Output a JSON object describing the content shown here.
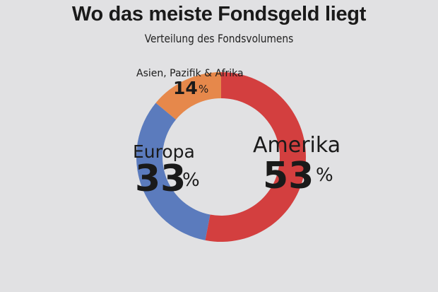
{
  "header": {
    "title": "Wo das meiste Fondsgeld liegt",
    "subtitle": "Verteilung des Fondsvolumens"
  },
  "chart_data": {
    "type": "pie",
    "title": "Wo das meiste Fondsgeld liegt",
    "subtitle": "Verteilung des Fondsvolumens",
    "unit": "%",
    "slices": [
      {
        "name": "Amerika",
        "value": 53,
        "color": "#d33f3f"
      },
      {
        "name": "Europa",
        "value": 33,
        "color": "#5b7bbd"
      },
      {
        "name": "Asien, Pazifik & Afrika",
        "value": 14,
        "color": "#e6884b"
      }
    ]
  }
}
